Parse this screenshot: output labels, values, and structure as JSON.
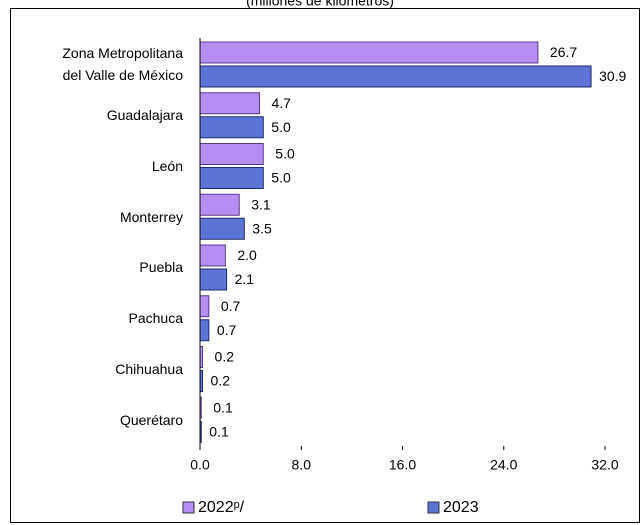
{
  "chart_data": {
    "type": "bar",
    "orientation": "horizontal",
    "subtitle": "(millones de kilómetros)",
    "categories": [
      "Zona Metropolitana del Valle de México",
      "Guadalajara",
      "León",
      "Monterrey",
      "Puebla",
      "Pachuca",
      "Chihuahua",
      "Querétaro"
    ],
    "series": [
      {
        "name": "2022ᵖ/",
        "color": "#b48ef2",
        "values": [
          26.7,
          4.7,
          5.0,
          3.1,
          2.0,
          0.7,
          0.2,
          0.1
        ],
        "value_labels": [
          "26.7",
          "4.7",
          "5.0",
          "3.1",
          "2.0",
          "0.7",
          "0.2",
          "0.1"
        ]
      },
      {
        "name": "2023",
        "color": "#5c74d6",
        "values": [
          30.9,
          5.0,
          5.0,
          3.5,
          2.1,
          0.7,
          0.2,
          0.1
        ],
        "value_labels": [
          "30.9",
          "5.0",
          "5.0",
          "3.5",
          "2.1",
          "0.7",
          "0.2",
          "0.1"
        ]
      }
    ],
    "xlim": [
      0,
      32
    ],
    "xticks": [
      {
        "value": 0,
        "label": "0.0"
      },
      {
        "value": 8,
        "label": "8.0"
      },
      {
        "value": 16,
        "label": "16.0"
      },
      {
        "value": 24,
        "label": "24.0"
      },
      {
        "value": 32,
        "label": "32.0"
      }
    ]
  }
}
